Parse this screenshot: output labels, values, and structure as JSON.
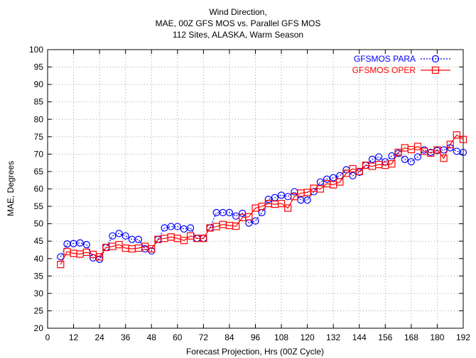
{
  "chart_data": {
    "type": "line",
    "title_lines": [
      "Wind Direction,",
      "MAE, 00Z GFS MOS vs. Parallel GFS MOS",
      "112 Sites, ALASKA, Warm Season"
    ],
    "xlabel": "Forecast Projection, Hrs (00Z Cycle)",
    "ylabel": "MAE, Degrees",
    "xlim": [
      0,
      192
    ],
    "ylim": [
      20,
      100
    ],
    "xticks": [
      0,
      12,
      24,
      36,
      48,
      60,
      72,
      84,
      96,
      108,
      120,
      132,
      144,
      156,
      168,
      180,
      192
    ],
    "yticks": [
      20,
      25,
      30,
      35,
      40,
      45,
      50,
      55,
      60,
      65,
      70,
      75,
      80,
      85,
      90,
      95,
      100
    ],
    "grid": true,
    "legend_position": "top-right",
    "x": [
      6,
      9,
      12,
      15,
      18,
      21,
      24,
      27,
      30,
      33,
      36,
      39,
      42,
      45,
      48,
      51,
      54,
      57,
      60,
      63,
      66,
      69,
      72,
      75,
      78,
      81,
      84,
      87,
      90,
      93,
      96,
      99,
      102,
      105,
      108,
      111,
      114,
      117,
      120,
      123,
      126,
      129,
      132,
      135,
      138,
      141,
      144,
      147,
      150,
      153,
      156,
      159,
      162,
      165,
      168,
      171,
      174,
      177,
      180,
      183,
      186,
      189,
      192
    ],
    "series": [
      {
        "name": "GFSMOS PARA",
        "color": "#0000ff",
        "marker": "circle",
        "line_style": "dotted",
        "values": [
          40.5,
          44.2,
          44.3,
          44.5,
          44.0,
          40.2,
          39.8,
          43.2,
          46.5,
          47.2,
          46.5,
          45.5,
          45.5,
          42.8,
          42.2,
          45.5,
          48.8,
          49.2,
          49.2,
          48.5,
          48.8,
          45.8,
          45.8,
          48.8,
          53.2,
          53.2,
          53.2,
          52.2,
          53.0,
          50.2,
          50.8,
          53.2,
          57.0,
          57.5,
          58.2,
          57.8,
          59.2,
          56.8,
          56.8,
          59.2,
          62.0,
          62.8,
          63.2,
          63.8,
          65.5,
          63.8,
          64.8,
          66.8,
          68.5,
          69.2,
          67.8,
          69.5,
          70.2,
          68.5,
          67.8,
          69.2,
          71.2,
          70.5,
          71.0,
          71.2,
          71.8,
          70.8,
          70.5
        ]
      },
      {
        "name": "GFSMOS OPER",
        "color": "#ff0000",
        "marker": "square",
        "line_style": "solid",
        "values": [
          38.3,
          42.0,
          41.5,
          41.3,
          41.8,
          41.2,
          40.5,
          43.2,
          43.5,
          44.0,
          43.0,
          42.8,
          43.0,
          43.5,
          42.8,
          45.5,
          45.8,
          46.2,
          45.8,
          45.2,
          46.5,
          45.8,
          45.8,
          48.8,
          49.2,
          49.8,
          49.5,
          49.3,
          51.8,
          52.0,
          54.5,
          55.0,
          55.8,
          55.6,
          55.8,
          54.5,
          57.8,
          58.8,
          59.0,
          60.2,
          60.0,
          61.5,
          61.2,
          62.0,
          64.5,
          65.8,
          65.0,
          66.8,
          66.5,
          67.0,
          66.8,
          67.2,
          70.5,
          71.8,
          71.3,
          72.2,
          70.8,
          70.3,
          71.2,
          68.8,
          72.8,
          75.5,
          74.2
        ]
      }
    ]
  }
}
